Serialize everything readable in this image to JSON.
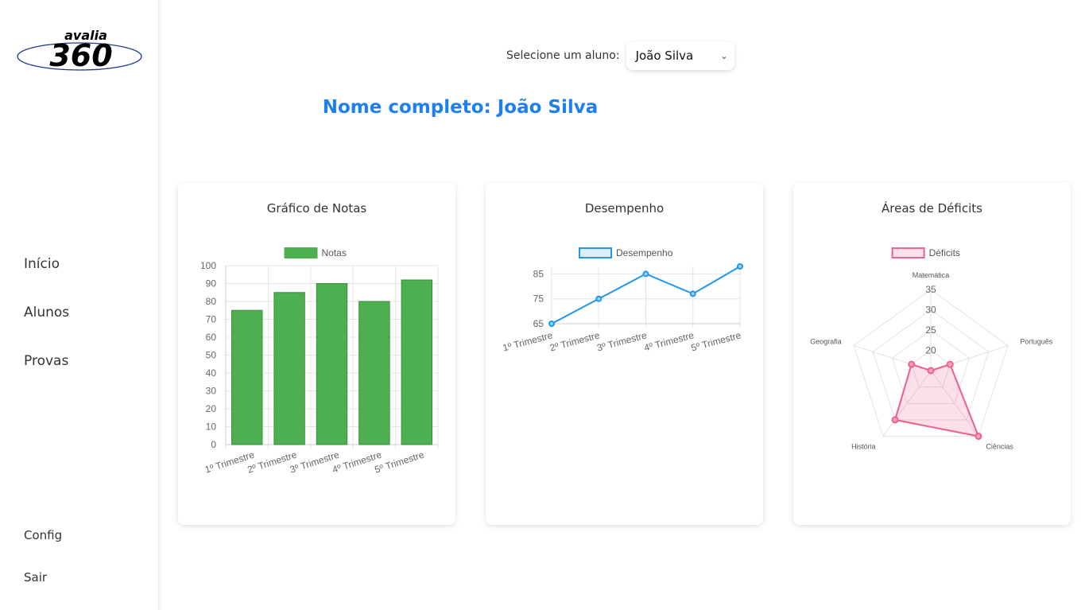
{
  "logo": {
    "line1": "avalia",
    "line2": "360"
  },
  "sidebar": {
    "items": [
      {
        "label": "Início"
      },
      {
        "label": "Alunos"
      },
      {
        "label": "Provas"
      }
    ],
    "bottom": [
      {
        "label": "Config"
      },
      {
        "label": "Sair"
      }
    ]
  },
  "selector": {
    "label": "Selecione um aluno:",
    "value": "João Silva"
  },
  "page_title": "Nome completo: João Silva",
  "cards": [
    {
      "title": "Gráfico de Notas"
    },
    {
      "title": "Desempenho"
    },
    {
      "title": "Áreas de Déficits"
    }
  ],
  "chart_data": [
    {
      "type": "bar",
      "title": "",
      "categories": [
        "1º Trimestre",
        "2º Trimestre",
        "3º Trimestre",
        "4º Trimestre",
        "5º Trimestre"
      ],
      "series": [
        {
          "name": "Notas",
          "values": [
            75,
            85,
            90,
            80,
            92
          ]
        }
      ],
      "ylim": [
        0,
        100
      ],
      "yticks": [
        0,
        10,
        20,
        30,
        40,
        50,
        60,
        70,
        80,
        90,
        100
      ],
      "grid": true,
      "legend": "top-center",
      "color": "#4caf50"
    },
    {
      "type": "line",
      "title": "",
      "categories": [
        "1º Trimestre",
        "2º Trimestre",
        "3º Trimestre",
        "4º Trimestre",
        "5º Trimestre"
      ],
      "series": [
        {
          "name": "Desempenho",
          "values": [
            65,
            75,
            85,
            77,
            88
          ]
        }
      ],
      "ylim": [
        65,
        88
      ],
      "yticks": [
        65,
        75,
        85
      ],
      "grid": true,
      "legend": "top-center",
      "color": "#2196f3"
    },
    {
      "type": "radar",
      "title": "",
      "categories": [
        "Matemática",
        "Português",
        "Ciências",
        "História",
        "Geografia"
      ],
      "series": [
        {
          "name": "Déficits",
          "values": [
            15,
            20,
            35,
            30,
            20
          ]
        }
      ],
      "rlim": [
        15,
        35
      ],
      "rticks": [
        20,
        25,
        30,
        35
      ],
      "legend": "top-center",
      "color": "#f06292"
    }
  ]
}
